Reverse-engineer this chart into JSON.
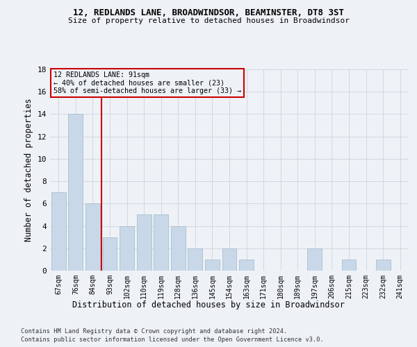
{
  "title": "12, REDLANDS LANE, BROADWINDSOR, BEAMINSTER, DT8 3ST",
  "subtitle": "Size of property relative to detached houses in Broadwindsor",
  "xlabel": "Distribution of detached houses by size in Broadwindsor",
  "ylabel": "Number of detached properties",
  "footer_line1": "Contains HM Land Registry data © Crown copyright and database right 2024.",
  "footer_line2": "Contains public sector information licensed under the Open Government Licence v3.0.",
  "categories": [
    "67sqm",
    "76sqm",
    "84sqm",
    "93sqm",
    "102sqm",
    "110sqm",
    "119sqm",
    "128sqm",
    "136sqm",
    "145sqm",
    "154sqm",
    "163sqm",
    "171sqm",
    "180sqm",
    "189sqm",
    "197sqm",
    "206sqm",
    "215sqm",
    "223sqm",
    "232sqm",
    "241sqm"
  ],
  "values": [
    7,
    14,
    6,
    3,
    4,
    5,
    5,
    4,
    2,
    1,
    2,
    1,
    0,
    0,
    0,
    2,
    0,
    1,
    0,
    1,
    0
  ],
  "bar_color": "#c8d8e8",
  "bar_edge_color": "#a8bece",
  "background_color": "#eef2f6",
  "grid_color": "#d0d8e0",
  "vline_x": 2.5,
  "vline_color": "#cc0000",
  "annotation_line1": "12 REDLANDS LANE: 91sqm",
  "annotation_line2": "← 40% of detached houses are smaller (23)",
  "annotation_line3": "58% of semi-detached houses are larger (33) →",
  "annotation_box_color": "#cc0000",
  "ylim": [
    0,
    18
  ],
  "yticks": [
    0,
    2,
    4,
    6,
    8,
    10,
    12,
    14,
    16,
    18
  ]
}
